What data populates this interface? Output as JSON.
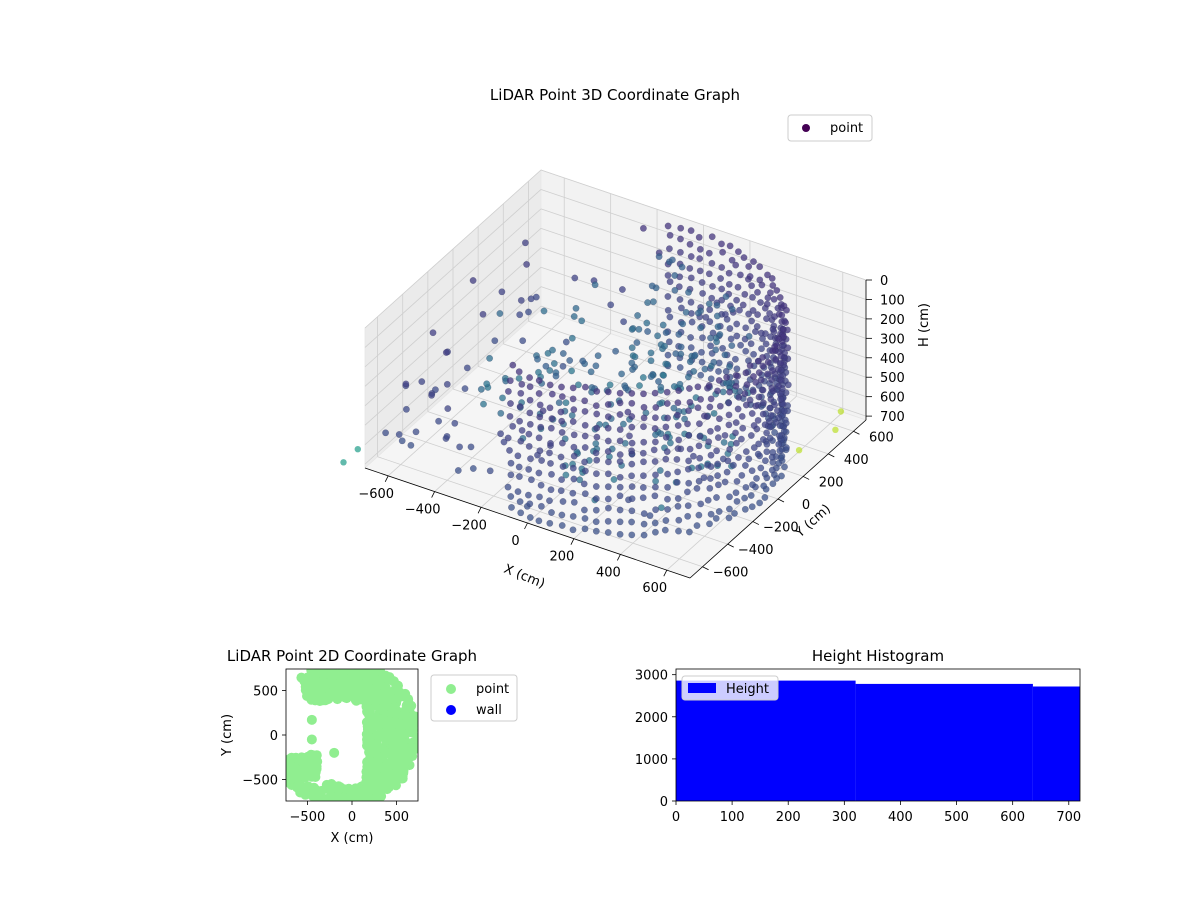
{
  "chart_data": [
    {
      "type": "scatter",
      "projection": "3d",
      "title": "LiDAR Point 3D Coordinate Graph",
      "xlabel": "X (cm)",
      "ylabel": "Y (cm)",
      "zlabel": "H (cm)",
      "xlim": [
        -700,
        700
      ],
      "ylim": [
        -700,
        700
      ],
      "zlim": [
        0,
        720
      ],
      "zaxis_inverted": true,
      "xticks": [
        -600,
        -400,
        -200,
        0,
        200,
        400,
        600
      ],
      "yticks": [
        -600,
        -400,
        -200,
        0,
        200,
        400,
        600
      ],
      "zticks": [
        0,
        100,
        200,
        300,
        400,
        500,
        600,
        700
      ],
      "legend": {
        "position": "top-right",
        "entries": [
          {
            "label": "point",
            "color": "#440154"
          }
        ]
      },
      "colormap": "viridis",
      "grid": true,
      "series": [
        {
          "name": "point",
          "structure": "semicircular wall of points, radius about 650 cm, from about -100° to 100° around the +X side, sampled at heights 0–720 cm",
          "x_range": [
            -700,
            700
          ],
          "y_range": [
            -700,
            700
          ],
          "h_range": [
            0,
            720
          ]
        }
      ]
    },
    {
      "type": "scatter",
      "title": "LiDAR Point 2D Coordinate Graph",
      "xlabel": "X (cm)",
      "ylabel": "Y (cm)",
      "xlim": [
        -740,
        740
      ],
      "ylim": [
        -740,
        740
      ],
      "xticks": [
        -500,
        0,
        500
      ],
      "yticks": [
        -500,
        0,
        500
      ],
      "legend": {
        "position": "outside-right",
        "entries": [
          {
            "label": "point",
            "color": "#90ee90"
          },
          {
            "label": "wall",
            "color": "#0000ff"
          }
        ]
      },
      "series": [
        {
          "name": "point",
          "color": "#90ee90",
          "description": "dense filled region covering most of the area, with a white gap in the left-center"
        },
        {
          "name": "wall",
          "color": "#0000ff",
          "values": []
        }
      ]
    },
    {
      "type": "bar",
      "subtype": "histogram",
      "title": "Height Histogram",
      "legend": {
        "position": "upper-left",
        "entries": [
          {
            "label": "Height",
            "color": "#0000ff"
          }
        ]
      },
      "xlim": [
        0,
        720
      ],
      "ylim": [
        0,
        3000
      ],
      "xticks": [
        0,
        100,
        200,
        300,
        400,
        500,
        600,
        700
      ],
      "yticks": [
        0,
        1000,
        2000,
        3000
      ],
      "bins": [
        {
          "from": 0,
          "to": 320,
          "count": 2860
        },
        {
          "from": 320,
          "to": 636,
          "count": 2780
        },
        {
          "from": 636,
          "to": 720,
          "count": 2720
        }
      ],
      "color": "#0000ff"
    }
  ]
}
